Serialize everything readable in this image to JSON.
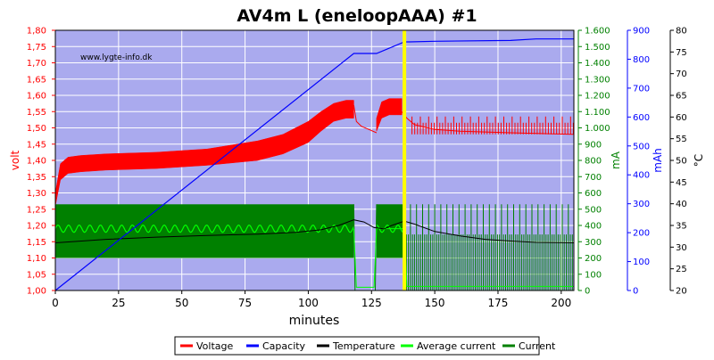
{
  "chart_data": {
    "type": "line",
    "title": "AV4m L (eneloopAAA) #1",
    "watermark": "www.lygte-info.dk",
    "xlabel": "minutes",
    "xlim": [
      0,
      205
    ],
    "x_ticks": [
      0,
      25,
      50,
      75,
      100,
      125,
      150,
      175,
      200
    ],
    "axes": {
      "volt": {
        "label": "volt",
        "color": "#ff0000",
        "lim": [
          1.0,
          1.8
        ],
        "ticks": [
          "1,00",
          "1,05",
          "1,10",
          "1,15",
          "1,20",
          "1,25",
          "1,30",
          "1,35",
          "1,40",
          "1,45",
          "1,50",
          "1,55",
          "1,60",
          "1,65",
          "1,70",
          "1,75",
          "1,80"
        ]
      },
      "mA": {
        "label": "mA",
        "color": "#008000",
        "lim": [
          0,
          1600
        ],
        "ticks": [
          "0",
          "100",
          "200",
          "300",
          "400",
          "500",
          "600",
          "700",
          "800",
          "900",
          "1.000",
          "1.100",
          "1.200",
          "1.300",
          "1.400",
          "1.500",
          "1.600"
        ]
      },
      "mAh": {
        "label": "mAh",
        "color": "#0000ff",
        "lim": [
          0,
          900
        ],
        "ticks": [
          "0",
          "100",
          "200",
          "300",
          "400",
          "500",
          "600",
          "700",
          "800",
          "900"
        ]
      },
      "temp": {
        "label": "°C",
        "color": "#000000",
        "lim": [
          20,
          80
        ],
        "ticks": [
          "20",
          "25",
          "30",
          "35",
          "40",
          "45",
          "50",
          "55",
          "60",
          "65",
          "70",
          "75",
          "80"
        ]
      }
    },
    "grid": true,
    "legend_position": "bottom",
    "legend": [
      {
        "label": "Voltage",
        "color": "#ff0000"
      },
      {
        "label": "Capacity",
        "color": "#0000ff"
      },
      {
        "label": "Temperature",
        "color": "#000000"
      },
      {
        "label": "Average current",
        "color": "#00ff00"
      },
      {
        "label": "Current",
        "color": "#008000"
      }
    ],
    "marker_x": 138,
    "marker_color": "#ffff00",
    "series": [
      {
        "name": "Voltage",
        "axis": "volt",
        "color": "#ff0000",
        "style": "band",
        "x": [
          0,
          2,
          5,
          10,
          20,
          40,
          60,
          80,
          90,
          100,
          105,
          110,
          115,
          118
        ],
        "low": [
          1.26,
          1.34,
          1.36,
          1.365,
          1.37,
          1.375,
          1.385,
          1.4,
          1.42,
          1.455,
          1.49,
          1.52,
          1.53,
          1.53
        ],
        "high": [
          1.3,
          1.39,
          1.41,
          1.415,
          1.42,
          1.425,
          1.435,
          1.46,
          1.48,
          1.52,
          1.55,
          1.575,
          1.585,
          1.585
        ]
      },
      {
        "name": "Voltage",
        "axis": "volt",
        "color": "#ff0000",
        "style": "line",
        "x": [
          118,
          119,
          121,
          124,
          127
        ],
        "y": [
          1.57,
          1.52,
          1.505,
          1.495,
          1.485
        ]
      },
      {
        "name": "Voltage",
        "axis": "volt",
        "color": "#ff0000",
        "style": "band",
        "x": [
          127,
          129,
          132,
          135,
          137
        ],
        "low": [
          1.49,
          1.53,
          1.54,
          1.54,
          1.54
        ],
        "high": [
          1.53,
          1.58,
          1.59,
          1.59,
          1.59
        ]
      },
      {
        "name": "Voltage",
        "axis": "volt",
        "color": "#ff0000",
        "style": "line",
        "x": [
          137,
          139,
          142,
          150,
          160,
          180,
          205
        ],
        "y": [
          1.55,
          1.53,
          1.51,
          1.495,
          1.49,
          1.485,
          1.48
        ]
      },
      {
        "name": "Voltage",
        "axis": "volt",
        "color": "#ff0000",
        "style": "spikes",
        "x_range": [
          141,
          205
        ],
        "step": 1.1,
        "low": 1.48,
        "high": 1.535
      },
      {
        "name": "Capacity",
        "axis": "mAh",
        "color": "#0000ff",
        "style": "line",
        "x": [
          0,
          118,
          127,
          138,
          140,
          150,
          180,
          190,
          205
        ],
        "y": [
          0,
          820,
          820,
          860,
          860,
          862,
          865,
          870,
          870
        ]
      },
      {
        "name": "Temperature",
        "axis": "temp",
        "color": "#000000",
        "style": "line",
        "x": [
          0,
          20,
          40,
          60,
          80,
          95,
          105,
          112,
          118,
          122,
          126,
          130,
          133,
          138,
          142,
          150,
          160,
          170,
          180,
          190,
          205
        ],
        "y": [
          31.0,
          31.8,
          32.3,
          32.7,
          33.0,
          33.4,
          34.0,
          35.0,
          36.3,
          35.8,
          34.5,
          34.2,
          35.0,
          36.0,
          35.3,
          33.6,
          32.6,
          31.8,
          31.4,
          31.1,
          31.0
        ]
      },
      {
        "name": "Current",
        "axis": "mA",
        "color": "#008000",
        "style": "block",
        "x": [
          0,
          118
        ],
        "low": 200,
        "high": 530
      },
      {
        "name": "Current",
        "axis": "mA",
        "color": "#008000",
        "style": "block",
        "x": [
          127,
          138
        ],
        "low": 200,
        "high": 530
      },
      {
        "name": "Current",
        "axis": "mA",
        "color": "#008000",
        "style": "line",
        "x": [
          118,
          118.5,
          126.5,
          127
        ],
        "y": [
          530,
          0,
          0,
          530
        ]
      },
      {
        "name": "Current",
        "axis": "mA",
        "color": "#008000",
        "style": "spikes",
        "x_range": [
          138,
          205
        ],
        "step": 0.8,
        "low": 0,
        "high": 530
      },
      {
        "name": "Average current",
        "axis": "mA",
        "color": "#00ff00",
        "style": "wave",
        "x_range": [
          0,
          118
        ],
        "center": 380,
        "amplitude": 22,
        "period": 4.2
      },
      {
        "name": "Average current",
        "axis": "mA",
        "color": "#00ff00",
        "style": "wave",
        "x_range": [
          127,
          138
        ],
        "center": 380,
        "amplitude": 22,
        "period": 4.2
      },
      {
        "name": "Average current",
        "axis": "mA",
        "color": "#00ff00",
        "style": "line",
        "x": [
          118,
          119,
          126,
          127,
          138,
          139,
          205
        ],
        "y": [
          380,
          20,
          20,
          380,
          380,
          25,
          25
        ]
      }
    ]
  }
}
